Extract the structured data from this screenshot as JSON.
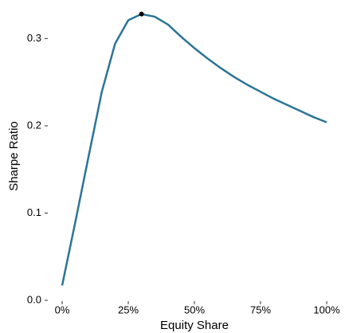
{
  "chart_data": {
    "type": "line",
    "x_label": "Equity Share",
    "y_label": "Sharpe Ratio",
    "x": [
      0,
      5,
      10,
      15,
      20,
      25,
      30,
      35,
      40,
      45,
      50,
      55,
      60,
      65,
      70,
      75,
      80,
      85,
      90,
      95,
      100
    ],
    "series": [
      {
        "color": "#2b7596",
        "values": [
          0.017,
          0.09,
          0.165,
          0.239,
          0.294,
          0.321,
          0.328,
          0.325,
          0.316,
          0.302,
          0.289,
          0.277,
          0.266,
          0.256,
          0.247,
          0.239,
          0.231,
          0.224,
          0.217,
          0.21,
          0.204
        ]
      }
    ],
    "highlight_point": {
      "x": 30,
      "y": 0.328,
      "color": "#000000"
    },
    "xlim": [
      0,
      100
    ],
    "ylim": [
      0,
      0.335
    ],
    "xticks": [
      {
        "value": 0,
        "label": "0%"
      },
      {
        "value": 25,
        "label": "25%"
      },
      {
        "value": 50,
        "label": "50%"
      },
      {
        "value": 75,
        "label": "75%"
      },
      {
        "value": 100,
        "label": "100%"
      }
    ],
    "yticks": [
      {
        "value": 0,
        "label": "0.0"
      },
      0.1,
      0.2,
      0.3
    ],
    "grid": false
  }
}
